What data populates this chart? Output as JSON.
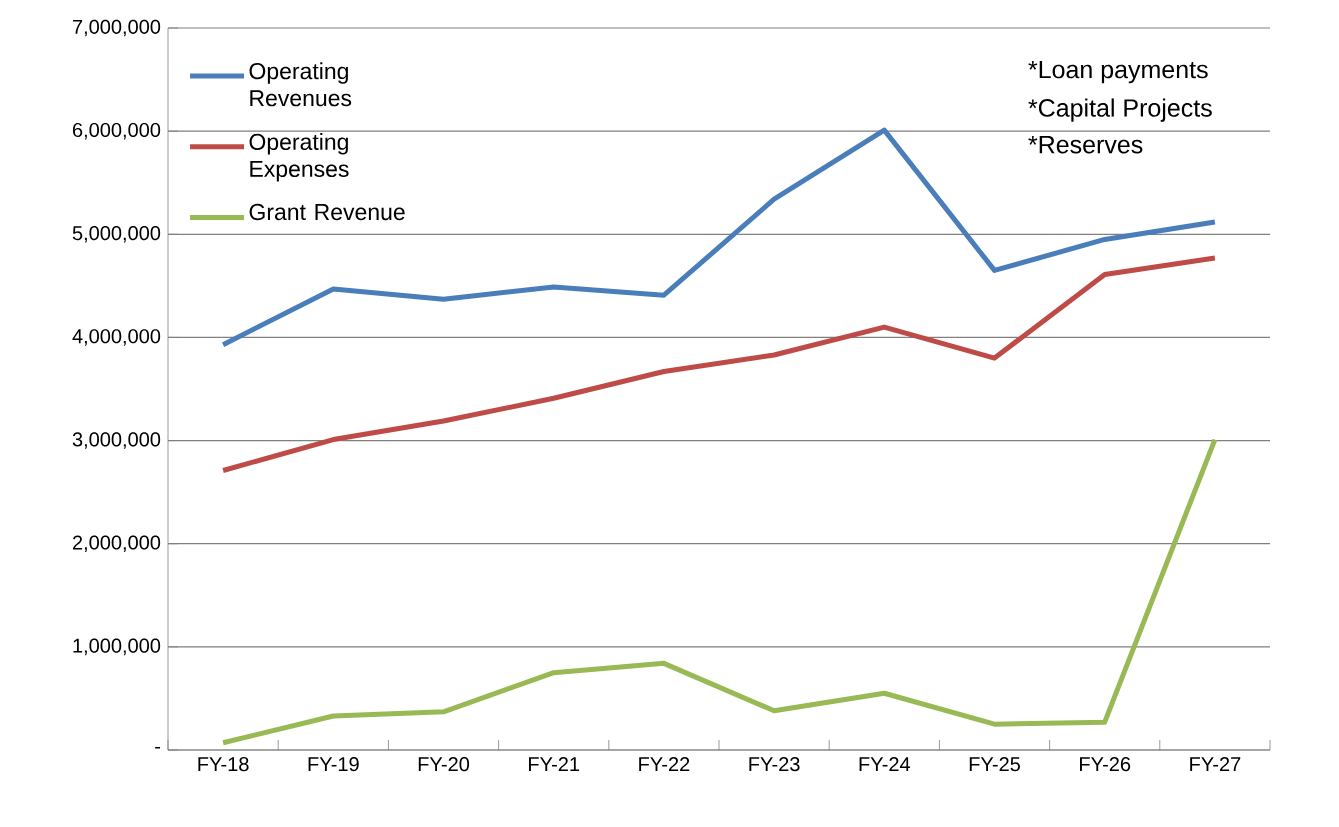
{
  "chart_data": {
    "type": "line",
    "categories": [
      "FY-18",
      "FY-19",
      "FY-20",
      "FY-21",
      "FY-22",
      "FY-23",
      "FY-24",
      "FY-25",
      "FY-26",
      "FY-27"
    ],
    "series": [
      {
        "name": "Operating Revenues",
        "color": "#4a7ebb",
        "values": [
          3930000,
          4470000,
          4370000,
          4490000,
          4410000,
          5340000,
          6010000,
          4650000,
          4950000,
          5120000
        ]
      },
      {
        "name": "Operating Expenses",
        "color": "#be4b48",
        "values": [
          2710000,
          3010000,
          3190000,
          3410000,
          3670000,
          3830000,
          4100000,
          3800000,
          4610000,
          4770000
        ]
      },
      {
        "name": "Grant Revenue",
        "color": "#98b954",
        "values": [
          70000,
          330000,
          370000,
          750000,
          840000,
          380000,
          550000,
          250000,
          270000,
          3010000
        ]
      }
    ],
    "ylim": [
      0,
      7000000
    ],
    "yticks": [
      {
        "value": 0,
        "label": "-"
      },
      {
        "value": 1000000,
        "label": "1,000,000"
      },
      {
        "value": 2000000,
        "label": "2,000,000"
      },
      {
        "value": 3000000,
        "label": "3,000,000"
      },
      {
        "value": 4000000,
        "label": "4,000,000"
      },
      {
        "value": 5000000,
        "label": "5,000,000"
      },
      {
        "value": 6000000,
        "label": "6,000,000"
      },
      {
        "value": 7000000,
        "label": "7,000,000"
      }
    ],
    "grid": "y",
    "legend": "top left",
    "marker": "none",
    "line_style": "solid",
    "annotations": [
      "*Loan payments",
      "*Capital Projects",
      "*Reserves"
    ]
  }
}
